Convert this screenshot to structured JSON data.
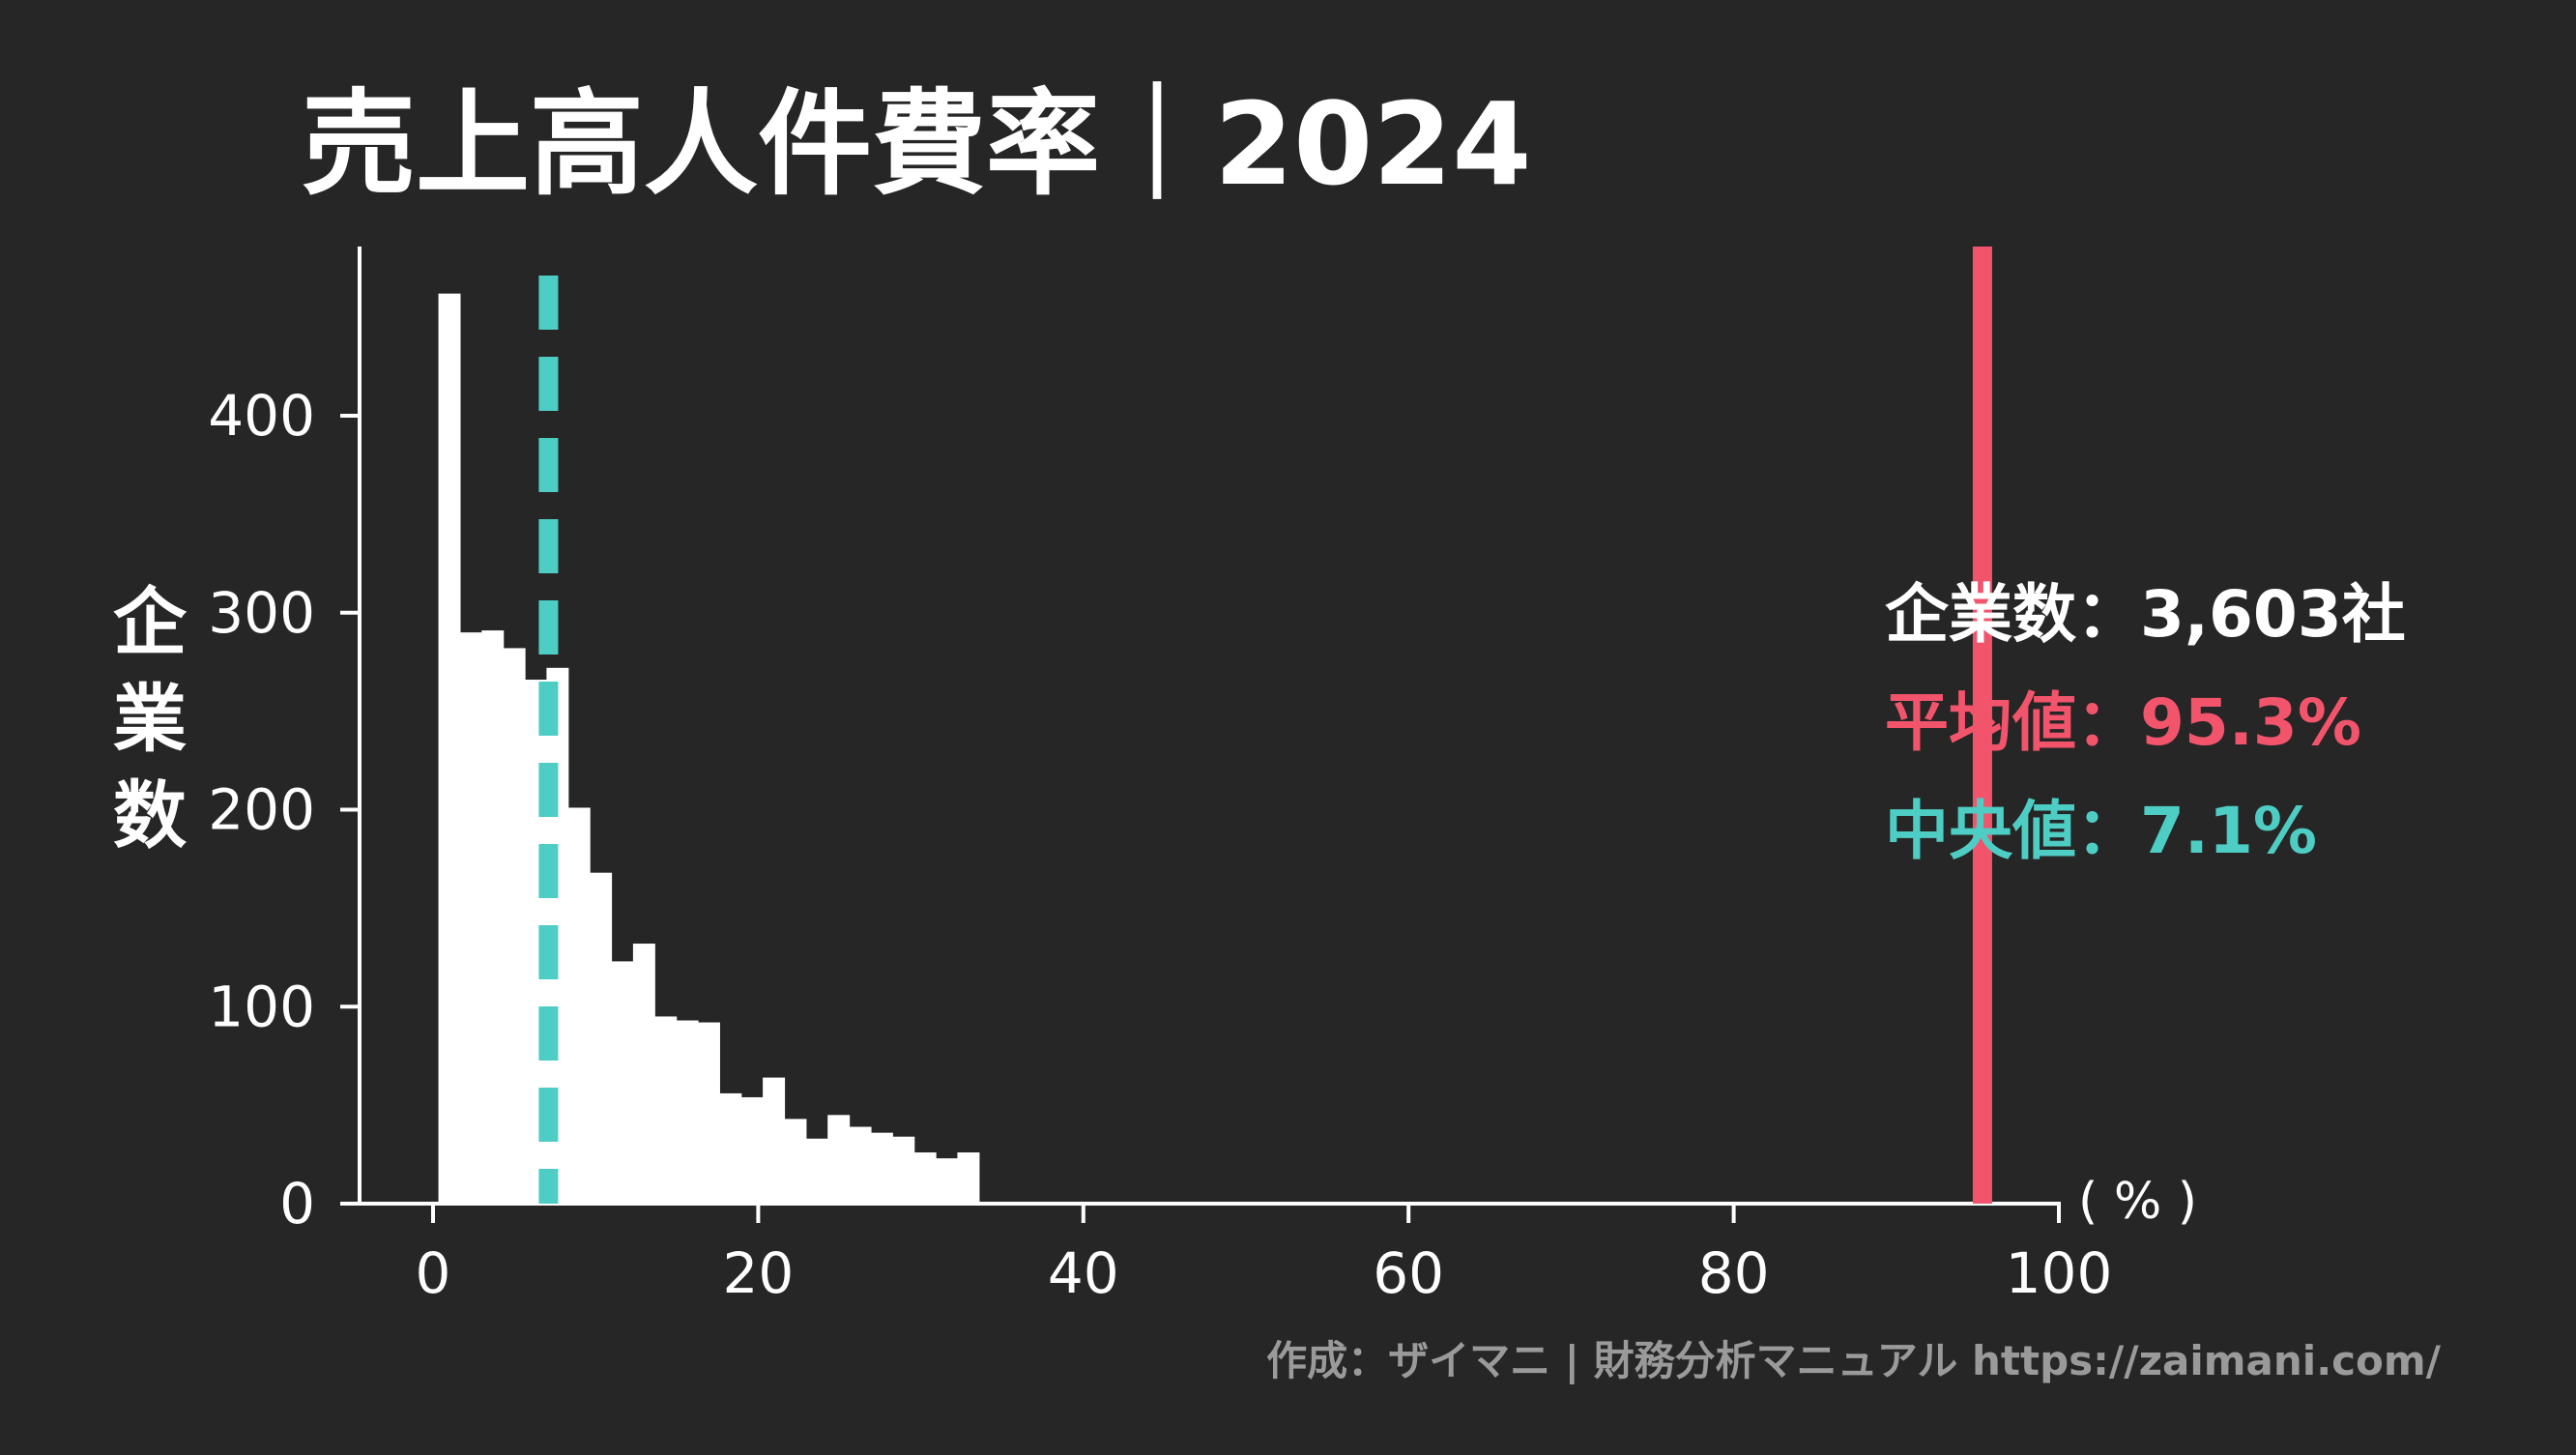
{
  "title": "売上高人件費率｜2024",
  "credit": "作成：ザイマニ | 財務分析マニュアル https://zaimani.com/",
  "colors": {
    "background": "#262626",
    "bars": "#ffffff",
    "axis": "#ffffff",
    "mean": "#f2546c",
    "median": "#4ecdc4"
  },
  "stats": {
    "count_label": "企業数",
    "count_value": "3,603社",
    "mean_label": "平均値",
    "mean_value": "95.3%",
    "median_label": "中央値",
    "median_value": "7.1%",
    "separator": "："
  },
  "chart_data": {
    "type": "bar",
    "subtype": "histogram",
    "title": "売上高人件費率｜2024",
    "xlabel": "( % )",
    "ylabel": "企業数",
    "xlim": [
      -5,
      100
    ],
    "ylim": [
      0,
      485
    ],
    "xticks": [
      0,
      20,
      40,
      60,
      80,
      100
    ],
    "yticks": [
      0,
      100,
      200,
      300,
      400
    ],
    "bin_width": 1.33,
    "bin_start": 0.33,
    "values": [
      462,
      290,
      291,
      282,
      266,
      272,
      201,
      168,
      123,
      132,
      95,
      93,
      92,
      56,
      54,
      64,
      43,
      33,
      45,
      39,
      36,
      34,
      26,
      23,
      26
    ],
    "mean": 95.3,
    "median": 7.1,
    "grid": false
  }
}
